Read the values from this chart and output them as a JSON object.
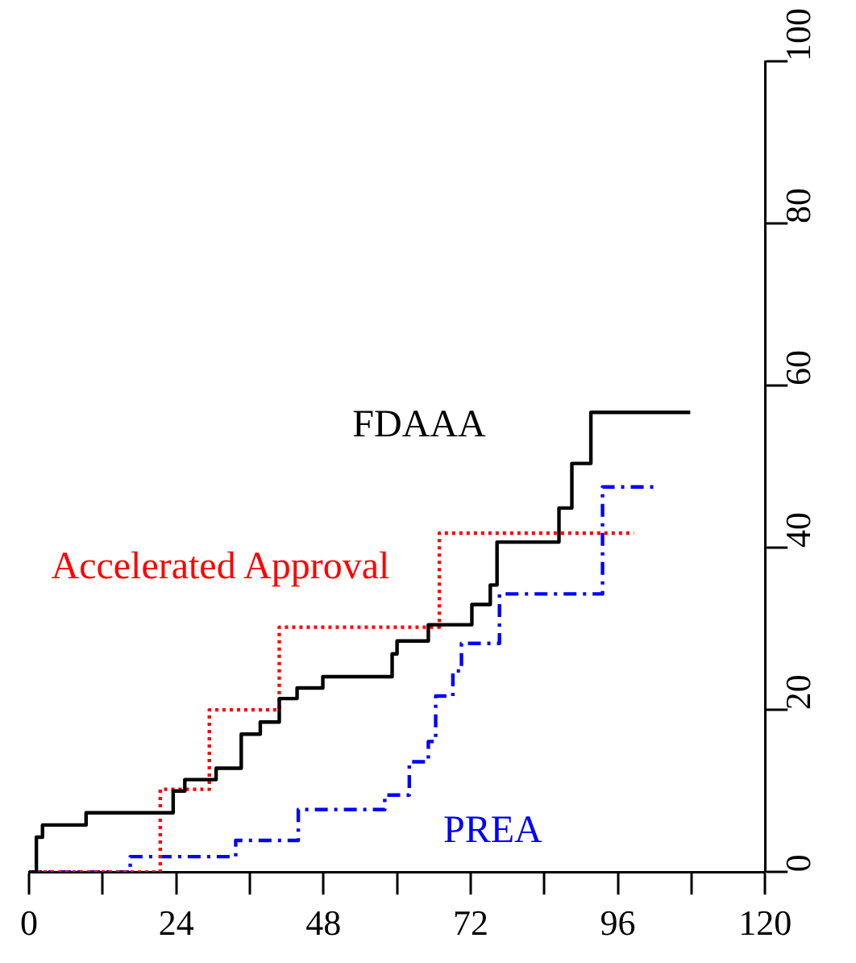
{
  "chart_data": {
    "type": "step",
    "xlim": [
      0,
      120
    ],
    "xticks": [
      0,
      {
        "value": 12,
        "label": null
      },
      24,
      {
        "value": 36,
        "label": null
      },
      48,
      {
        "value": 60,
        "label": null
      },
      72,
      {
        "value": 84,
        "label": null
      },
      96,
      {
        "value": 108,
        "label": null
      },
      120
    ],
    "ylim": [
      0,
      100
    ],
    "yticks": [
      0,
      20,
      40,
      60,
      80,
      100
    ],
    "grid": false,
    "legend": false,
    "marker": "none",
    "series": [
      {
        "name": "FDAAA",
        "color": "#000000",
        "line_style": "solid",
        "x": [
          0,
          1.2,
          2.2,
          9.3,
          23.5,
          25.4,
          30.5,
          34.6,
          37.7,
          40.8,
          43.7,
          47.9,
          59.2,
          60.0,
          65.1,
          72.2,
          75.2,
          76.3,
          86.4,
          88.5,
          91.6,
          107.8
        ],
        "values": [
          0,
          4.3,
          5.8,
          7.3,
          10.0,
          11.4,
          12.8,
          17.0,
          18.5,
          21.4,
          22.7,
          24.1,
          26.9,
          28.5,
          30.5,
          33.0,
          35.4,
          40.7,
          44.9,
          50.4,
          56.7,
          56.7
        ]
      },
      {
        "name": "Accelerated Approval",
        "color": "#ff0000",
        "line_style": "dotted",
        "x": [
          0,
          21.4,
          29.4,
          40.8,
          66.9,
          98.6
        ],
        "values": [
          0,
          10.2,
          20.0,
          30.2,
          41.8,
          41.8
        ]
      },
      {
        "name": "PREA",
        "color": "#0000ff",
        "line_style": "dashed",
        "x": [
          0,
          16.5,
          33.7,
          43.9,
          58.0,
          62.0,
          65.1,
          66.3,
          69.1,
          70.5,
          76.7,
          93.5,
          102.6
        ],
        "values": [
          0,
          1.9,
          3.9,
          7.7,
          9.5,
          13.6,
          16.1,
          21.7,
          24.8,
          28.2,
          34.3,
          47.5,
          47.5
        ]
      }
    ]
  }
}
